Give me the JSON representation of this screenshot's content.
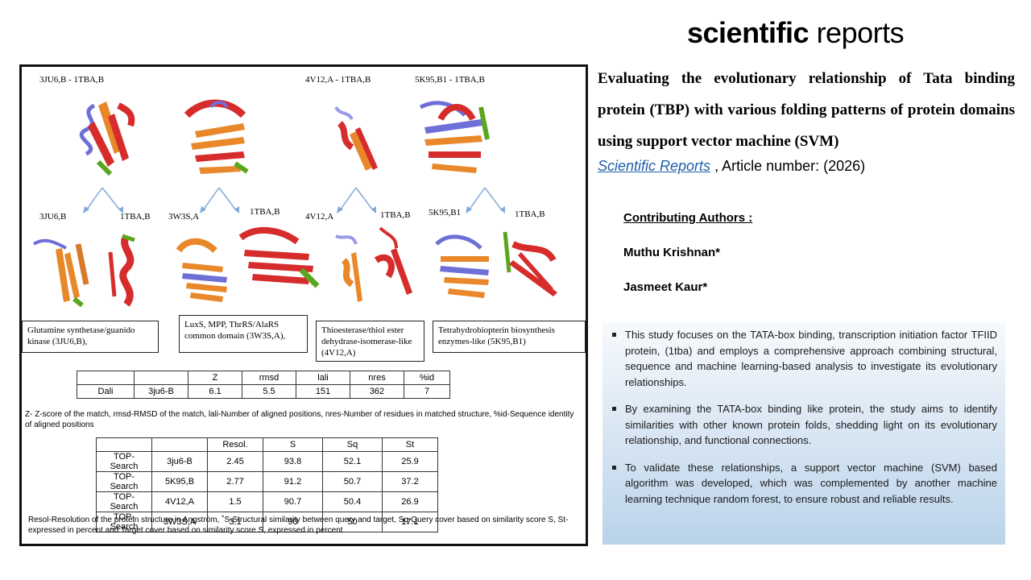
{
  "logo": {
    "bold": "scientific",
    "light": " reports"
  },
  "figure": {
    "top_labels": [
      "3JU6,B  - 1TBA,B",
      "4V12,A  - 1TBA,B",
      "5K95,B1  - 1TBA,B"
    ],
    "split_labels": [
      "3JU6,B",
      "1TBA,B",
      "3W3S,A",
      "1TBA,B",
      "4V12,A",
      "1TBA,B",
      "5K95,B1",
      "1TBA,B"
    ],
    "folds": [
      "Glutamine synthetase/guanido kinase (3JU6,B),",
      "LuxS, MPP, ThrRS/AlaRS common domain (3W3S,A),",
      "Thioesterase/thiol ester dehydrase-isomerase-like (4V12,A)",
      "Tetrahydrobiopterin biosynthesis enzymes-like (5K95,B1)"
    ],
    "dali": {
      "header": [
        "",
        "",
        "Z",
        "rmsd",
        "lali",
        "nres",
        "%id"
      ],
      "row": [
        "Dali",
        "3ju6-B",
        "6.1",
        "5.5",
        "151",
        "362",
        "7"
      ]
    },
    "dali_note": "Z- Z-score of the match, rmsd-RMSD of the match, lali-Number of aligned positions, nres-Number of residues in matched structure, %id-Sequence identity of aligned positions",
    "top": {
      "header": [
        "",
        "",
        "Resol.",
        "S",
        "Sq",
        "St"
      ],
      "rows": [
        [
          "TOP-Search",
          "3ju6-B",
          "2.45",
          "93.8",
          "52.1",
          "25.9"
        ],
        [
          "TOP-Search",
          "5K95,B",
          "2.77",
          "91.2",
          "50.7",
          "37.2"
        ],
        [
          "TOP-Search",
          "4V12,A",
          "1.5",
          "90.7",
          "50.4",
          "26.9"
        ],
        [
          "TOP-Search",
          "3W3S,A",
          "3.1",
          "90",
          "50",
          "17.1"
        ]
      ]
    },
    "top_note": "Resol-Resolution of the protein structure in Angström, ˚S-Structural similarity between query and target, Sq-Query cover based on similarity score S, St-expressed in percent and Target cover based on similarity score S, expressed in percent"
  },
  "article": {
    "title": "Evaluating the evolutionary relationship of Tata binding protein (TBP) with various folding patterns of protein domains using support vector machine (SVM)",
    "journal": "Scientific Reports",
    "article_number": " , Article number:  (2026)"
  },
  "authors": {
    "heading": "Contributing Authors :",
    "names": [
      "Muthu Krishnan*",
      "Jasmeet Kaur*"
    ]
  },
  "summary": [
    "This study focuses on the TATA-box binding, transcription initiation factor TFIID protein, (1tba) and employs a comprehensive approach combining structural, sequence and machine learning-based analysis to investigate its evolutionary relationships.",
    "By examining the TATA-box binding like protein, the study aims to identify similarities with other known protein folds, shedding light on its evolutionary relationship, and functional connections.",
    "To validate these relationships, a support vector machine (SVM) based algorithm was developed, which was complemented by another machine learning technique random forest, to ensure robust and reliable results."
  ],
  "colors": {
    "helix_red": "#d62c2c",
    "strand_orange": "#e8882a",
    "loop_blue": "#6f6fd8",
    "green": "#5aa61e",
    "arrow": "#7fa9d6"
  }
}
